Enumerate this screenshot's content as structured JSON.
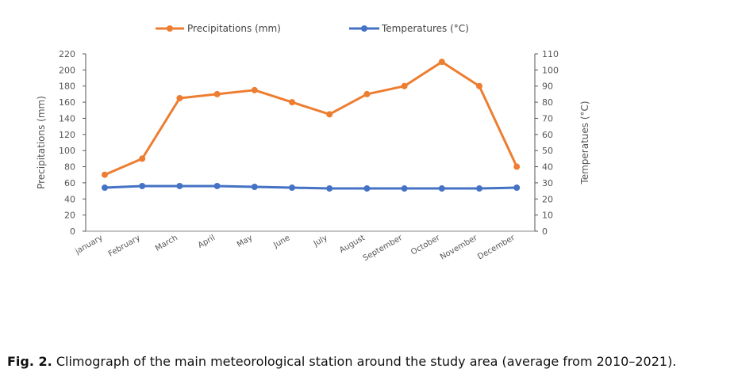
{
  "chart_data": {
    "type": "line",
    "categories": [
      "january",
      "February",
      "March",
      "April",
      "May",
      "June",
      "July",
      "August",
      "September",
      "October",
      "November",
      "December"
    ],
    "series": [
      {
        "name": "Precipitations (mm)",
        "axis": "left",
        "color": "#ED7D31",
        "values": [
          70,
          90,
          165,
          170,
          175,
          160,
          145,
          170,
          180,
          210,
          180,
          80
        ]
      },
      {
        "name": "Temperatures (°C)",
        "axis": "right",
        "color": "#4472C4",
        "values": [
          27,
          28,
          28,
          28,
          27.5,
          27,
          26.5,
          26.5,
          26.5,
          26.5,
          26.5,
          27
        ]
      }
    ],
    "ylabel_left": "Precipitations (mm)",
    "ylabel_right": "Temperatues (°C)",
    "ylim_left": [
      0,
      220
    ],
    "ylim_right": [
      0,
      110
    ],
    "yticks_left": [
      "0",
      "20",
      "40",
      "60",
      "80",
      "100",
      "120",
      "140",
      "160",
      "180",
      "200",
      "220"
    ],
    "yticks_right": [
      "0",
      "10",
      "20",
      "30",
      "40",
      "50",
      "60",
      "70",
      "80",
      "90",
      "100",
      "110"
    ],
    "legend_position": "top-center",
    "grid": false
  },
  "caption": {
    "label": "Fig. 2.",
    "text": " Climograph of the main meteorological station around the study area (average from 2010–2021)."
  }
}
